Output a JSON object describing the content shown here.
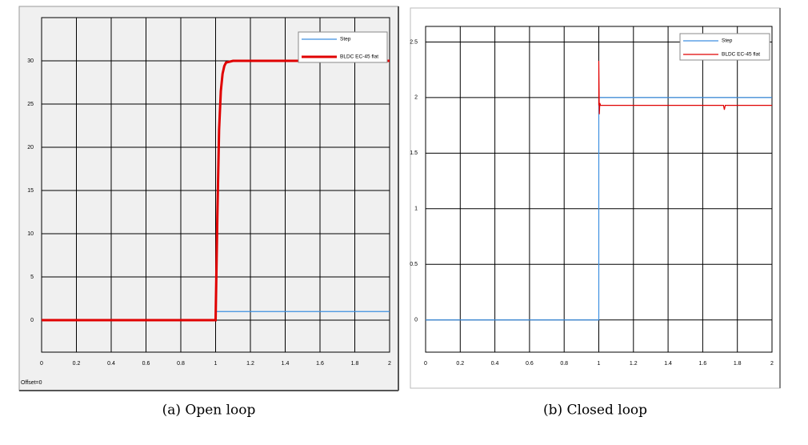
{
  "chart_data": [
    {
      "type": "line",
      "caption": "(a) Open loop",
      "annotation": "Offset=0",
      "xlim": [
        0,
        2
      ],
      "xticks": [
        0,
        0.2,
        0.4,
        0.6,
        0.8,
        1,
        1.2,
        1.4,
        1.6,
        1.8,
        2
      ],
      "ylim": [
        -3.7,
        35
      ],
      "yticks": [
        0,
        5,
        10,
        15,
        20,
        25,
        30
      ],
      "grid": true,
      "legend": "upper right",
      "series": [
        {
          "name": "Step",
          "color": "#3d8fe0",
          "line_width": 1.2,
          "x": [
            0,
            1,
            1,
            2
          ],
          "values": [
            0,
            0,
            1,
            1
          ]
        },
        {
          "name": "BLDC EC-45 flat",
          "color": "#e00000",
          "line_width": 3,
          "x": [
            0,
            1,
            1.01,
            1.02,
            1.03,
            1.04,
            1.05,
            1.06,
            1.1,
            2
          ],
          "values": [
            0,
            0,
            12,
            22,
            26.5,
            28.5,
            29.4,
            29.8,
            30,
            30
          ]
        }
      ]
    },
    {
      "type": "line",
      "caption": "(b) Closed loop",
      "xlim": [
        0,
        2
      ],
      "xticks": [
        0,
        0.2,
        0.4,
        0.6,
        0.8,
        1,
        1.2,
        1.4,
        1.6,
        1.8,
        2
      ],
      "ylim": [
        -0.29,
        2.64
      ],
      "yticks": [
        0,
        0.5,
        1,
        1.5,
        2,
        2.5
      ],
      "grid": true,
      "legend": "upper right",
      "series": [
        {
          "name": "Step",
          "color": "#3d8fe0",
          "line_width": 1.2,
          "x": [
            0,
            1,
            1,
            2
          ],
          "values": [
            0,
            0,
            2,
            2
          ]
        },
        {
          "name": "BLDC EC-45 flat",
          "color": "#e00000",
          "line_width": 1.2,
          "x": [
            1,
            1,
            1.003,
            1.006,
            1.01,
            1.5,
            1.72,
            1.725,
            1.73,
            2
          ],
          "values": [
            1.93,
            2.33,
            1.85,
            1.95,
            1.93,
            1.93,
            1.93,
            1.89,
            1.93,
            1.93
          ]
        }
      ]
    }
  ]
}
